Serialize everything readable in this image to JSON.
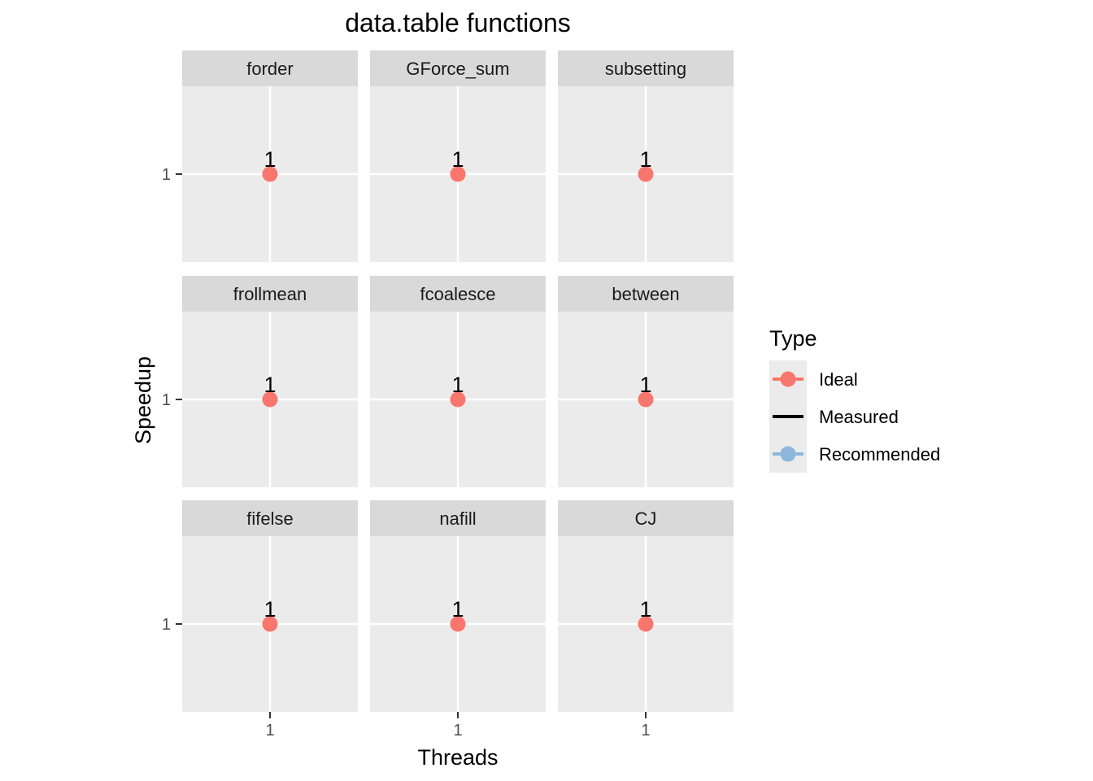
{
  "chart_data": {
    "type": "line",
    "title": "data.table functions",
    "xlabel": "Threads",
    "ylabel": "Speedup",
    "x_tick_labels": [
      "1",
      "1",
      "1"
    ],
    "y_tick_labels": [
      "1",
      "1",
      "1"
    ],
    "grid": true,
    "legend": {
      "title": "Type",
      "position": "right",
      "entries": [
        {
          "name": "Ideal",
          "color": "#F8766D",
          "style": "line-point"
        },
        {
          "name": "Measured",
          "color": "#000000",
          "style": "line"
        },
        {
          "name": "Recommended",
          "color": "#8DB8DC",
          "style": "line-point"
        }
      ]
    },
    "facets": [
      {
        "name": "forder",
        "points": [
          {
            "threads": 1,
            "speedup": 1,
            "label": "1",
            "type": "Ideal"
          }
        ]
      },
      {
        "name": "GForce_sum",
        "points": [
          {
            "threads": 1,
            "speedup": 1,
            "label": "1",
            "type": "Ideal"
          }
        ]
      },
      {
        "name": "subsetting",
        "points": [
          {
            "threads": 1,
            "speedup": 1,
            "label": "1",
            "type": "Ideal"
          }
        ]
      },
      {
        "name": "frollmean",
        "points": [
          {
            "threads": 1,
            "speedup": 1,
            "label": "1",
            "type": "Ideal"
          }
        ]
      },
      {
        "name": "fcoalesce",
        "points": [
          {
            "threads": 1,
            "speedup": 1,
            "label": "1",
            "type": "Ideal"
          }
        ]
      },
      {
        "name": "between",
        "points": [
          {
            "threads": 1,
            "speedup": 1,
            "label": "1",
            "type": "Ideal"
          }
        ]
      },
      {
        "name": "fifelse",
        "points": [
          {
            "threads": 1,
            "speedup": 1,
            "label": "1",
            "type": "Ideal"
          }
        ]
      },
      {
        "name": "nafill",
        "points": [
          {
            "threads": 1,
            "speedup": 1,
            "label": "1",
            "type": "Ideal"
          }
        ]
      },
      {
        "name": "CJ",
        "points": [
          {
            "threads": 1,
            "speedup": 1,
            "label": "1",
            "type": "Ideal"
          }
        ]
      }
    ]
  }
}
